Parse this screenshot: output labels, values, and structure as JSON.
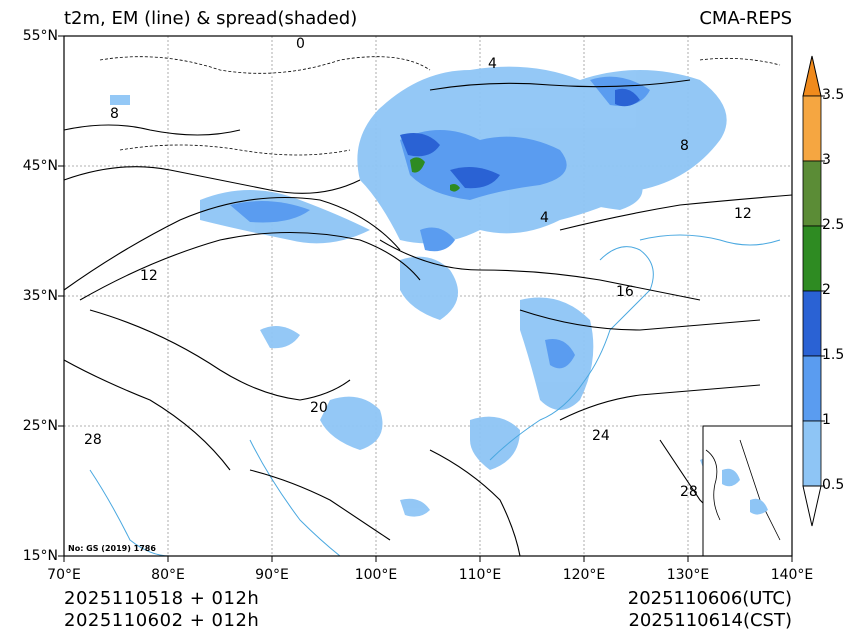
{
  "title_left": "t2m, EM (line) & spread(shaded)",
  "title_right": "CMA-REPS",
  "map_review_number": "No: GS (2019) 1786",
  "axes": {
    "lat_labels": [
      "55°N",
      "45°N",
      "35°N",
      "25°N",
      "15°N"
    ],
    "lon_labels": [
      "70°E",
      "80°E",
      "90°E",
      "100°E",
      "110°E",
      "120°E",
      "130°E",
      "140°E"
    ]
  },
  "colorbar": {
    "labels": [
      "3.5",
      "3",
      "2.5",
      "2",
      "1.5",
      "1",
      "0.5"
    ],
    "levels": [
      0.5,
      1,
      1.5,
      2,
      2.5,
      3,
      3.5
    ],
    "colors": {
      "below": "#ffffff",
      "0.5-1": "#8ec5f5",
      "1-1.5": "#5a9cf0",
      "1.5-2": "#2a62d4",
      "2-2.5": "#2e8b22",
      "2.5-3": "#5b8c36",
      "3-3.5": "#f5a641",
      "above": "#f08a1c"
    }
  },
  "contour_labels": [
    "0",
    "4",
    "8",
    "12",
    "16",
    "20",
    "24",
    "28"
  ],
  "footer": {
    "init_utc": "2025110518  +  012h",
    "init_cst": "2025110602  +  012h",
    "valid_utc": "2025110606(UTC)",
    "valid_cst": "2025110614(CST)"
  }
}
